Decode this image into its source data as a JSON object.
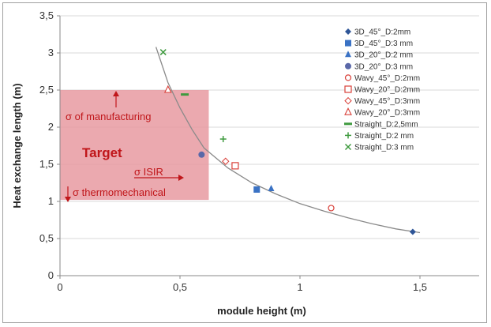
{
  "chart_data": {
    "type": "scatter",
    "xlabel": "module height (m)",
    "ylabel": "Heat exchange length (m)",
    "xlim": [
      0,
      1.5
    ],
    "ylim": [
      0,
      3.5
    ],
    "x_ticks": [
      "0",
      "0,5",
      "1",
      "1,5"
    ],
    "y_ticks": [
      "0",
      "0,5",
      "1",
      "1,5",
      "2",
      "2,5",
      "3",
      "3,5"
    ],
    "grid": "horizontal",
    "legend_position": "right",
    "series": [
      {
        "name": "3D_45°_D:2mm",
        "marker": "diamond-filled",
        "color": "#2e5597",
        "x": [
          1.47
        ],
        "y": [
          0.59
        ]
      },
      {
        "name": "3D_45°_D:3 mm",
        "marker": "square-filled",
        "color": "#3a72c4",
        "x": [
          0.82
        ],
        "y": [
          1.16
        ]
      },
      {
        "name": "3D_20°_D:2 mm",
        "marker": "triangle-filled",
        "color": "#3a72c4",
        "x": [
          0.88
        ],
        "y": [
          1.17
        ]
      },
      {
        "name": "3D_20°_D:3 mm",
        "marker": "circle-filled",
        "color": "#5a68a8",
        "x": [
          0.59
        ],
        "y": [
          1.63
        ]
      },
      {
        "name": "Wavy_45°_D:2mm",
        "marker": "circle-open",
        "color": "#d9413a",
        "x": [
          1.13
        ],
        "y": [
          0.91
        ]
      },
      {
        "name": "Wavy_20°_D:2mm",
        "marker": "square-open",
        "color": "#d9413a",
        "x": [
          0.73
        ],
        "y": [
          1.48
        ]
      },
      {
        "name": "Wavy_45°_D:3mm",
        "marker": "diamond-open",
        "color": "#d9413a",
        "x": [
          0.69
        ],
        "y": [
          1.54
        ]
      },
      {
        "name": "Wavy_20°_D:3mm",
        "marker": "triangle-open",
        "color": "#d9413a",
        "x": [
          0.45
        ],
        "y": [
          2.5
        ]
      },
      {
        "name": "Straight_D:2,5mm",
        "marker": "dash",
        "color": "#3f9a3f",
        "x": [
          0.52
        ],
        "y": [
          2.44
        ]
      },
      {
        "name": "Straight_D:2 mm",
        "marker": "plus",
        "color": "#3f9a3f",
        "x": [
          0.68
        ],
        "y": [
          1.84
        ]
      },
      {
        "name": "Straight_D:3 mm",
        "marker": "cross",
        "color": "#3f9a3f",
        "x": [
          0.43
        ],
        "y": [
          3.01
        ]
      }
    ],
    "trendline": {
      "color": "#8a8a8a",
      "points": [
        [
          0.4,
          3.08
        ],
        [
          0.45,
          2.6
        ],
        [
          0.5,
          2.26
        ],
        [
          0.55,
          1.97
        ],
        [
          0.6,
          1.72
        ],
        [
          0.7,
          1.45
        ],
        [
          0.8,
          1.25
        ],
        [
          0.9,
          1.1
        ],
        [
          1.0,
          0.97
        ],
        [
          1.1,
          0.87
        ],
        [
          1.2,
          0.78
        ],
        [
          1.3,
          0.7
        ],
        [
          1.4,
          0.63
        ],
        [
          1.5,
          0.58
        ]
      ]
    },
    "target_region": {
      "x": [
        0,
        0.62
      ],
      "y": [
        1.02,
        2.5
      ],
      "color": "#e79aa1"
    },
    "annotations": {
      "target": "Target",
      "sigma_manufacturing": "σ of manufacturing",
      "sigma_isir": "σ ISIR",
      "sigma_thermomechanical": "σ thermomechanical"
    }
  }
}
